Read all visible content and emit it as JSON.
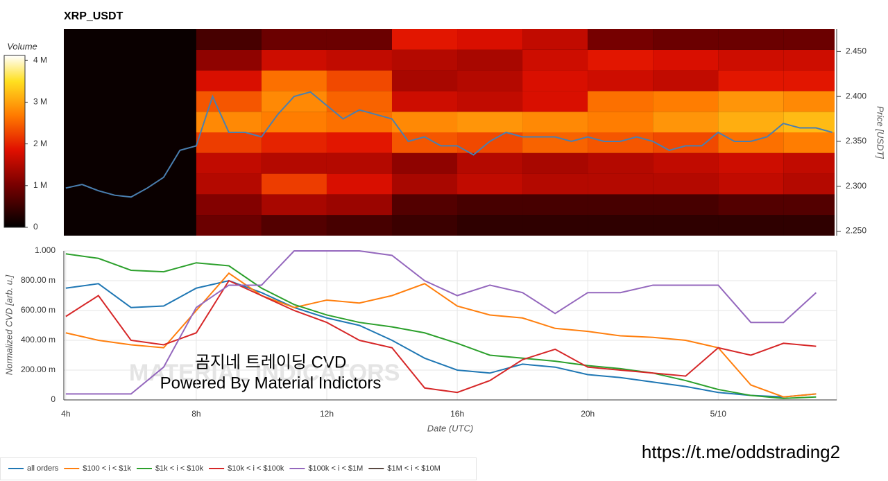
{
  "chart_data": [
    {
      "type": "heatmap",
      "title": "XRP_USDT",
      "ylabel": "Price [USDT]",
      "xlim": [
        3.94,
        27.57
      ],
      "ylim": [
        2.245,
        2.475
      ],
      "yticks": [
        {
          "value": 2.25,
          "label": "2.250"
        },
        {
          "value": 2.3,
          "label": "2.300"
        },
        {
          "value": 2.35,
          "label": "2.350"
        },
        {
          "value": 2.4,
          "label": "2.400"
        },
        {
          "value": 2.45,
          "label": "2.450"
        }
      ],
      "colorbar": {
        "label": "Volume",
        "zlim": [
          0,
          4120000
        ],
        "ticks": [
          0,
          {
            "value": 1000000,
            "label": "1 M"
          },
          {
            "value": 2000000,
            "label": "2 M"
          },
          {
            "value": 3000000,
            "label": "3 M"
          },
          {
            "value": 4000000,
            "label": "4 M"
          }
        ]
      },
      "heatmap": {
        "x_edges": [
          8,
          10,
          12,
          14,
          16,
          18,
          20,
          22,
          24,
          26,
          27.57
        ],
        "y_edges": [
          2.245,
          2.268,
          2.291,
          2.314,
          2.337,
          2.36,
          2.383,
          2.406,
          2.429,
          2.452,
          2.475
        ],
        "z": [
          [
            900000,
            700000,
            600000,
            500000,
            400000,
            400000,
            400000,
            400000,
            400000,
            400000
          ],
          [
            1100000,
            1400000,
            1300000,
            700000,
            600000,
            600000,
            600000,
            600000,
            700000,
            700000
          ],
          [
            1500000,
            2200000,
            1800000,
            1400000,
            1600000,
            1500000,
            1500000,
            1500000,
            1600000,
            1500000
          ],
          [
            1600000,
            1500000,
            1500000,
            1200000,
            1500000,
            1400000,
            1500000,
            1600000,
            1700000,
            1600000
          ],
          [
            2200000,
            2000000,
            1900000,
            2400000,
            2300000,
            2500000,
            2400000,
            2300000,
            2600000,
            2700000
          ],
          [
            2800000,
            2700000,
            2600000,
            2800000,
            2900000,
            2800000,
            2700000,
            2900000,
            3100000,
            3200000
          ],
          [
            2400000,
            2800000,
            2500000,
            1700000,
            1600000,
            1800000,
            2600000,
            2700000,
            2900000,
            2800000
          ],
          [
            1800000,
            2600000,
            2300000,
            1400000,
            1500000,
            1800000,
            1700000,
            1600000,
            1900000,
            1900000
          ],
          [
            1200000,
            1700000,
            1600000,
            1500000,
            1400000,
            1700000,
            1900000,
            1800000,
            1700000,
            1700000
          ],
          [
            600000,
            900000,
            900000,
            1900000,
            1800000,
            1600000,
            1000000,
            900000,
            900000,
            900000
          ]
        ]
      },
      "series": [
        {
          "color": "#4a7fb0",
          "x": [
            4,
            4.5,
            5,
            5.5,
            6,
            6.5,
            7,
            7.5,
            8,
            8.5,
            9,
            9.5,
            10,
            10.5,
            11,
            11.5,
            12,
            12.5,
            13,
            13.5,
            14,
            14.5,
            15,
            15.5,
            16,
            16.5,
            17,
            17.5,
            18,
            18.5,
            19,
            19.5,
            20,
            20.5,
            21,
            21.5,
            22,
            22.5,
            23,
            23.5,
            24,
            24.5,
            25,
            25.5,
            26,
            26.5,
            27,
            27.5
          ],
          "values": [
            2.298,
            2.302,
            2.295,
            2.29,
            2.288,
            2.298,
            2.31,
            2.34,
            2.345,
            2.4,
            2.36,
            2.36,
            2.355,
            2.38,
            2.4,
            2.405,
            2.39,
            2.375,
            2.385,
            2.38,
            2.375,
            2.35,
            2.355,
            2.345,
            2.345,
            2.335,
            2.35,
            2.36,
            2.355,
            2.355,
            2.355,
            2.35,
            2.355,
            2.35,
            2.35,
            2.355,
            2.35,
            2.34,
            2.345,
            2.345,
            2.36,
            2.35,
            2.35,
            2.355,
            2.37,
            2.365,
            2.365,
            2.36
          ]
        }
      ]
    },
    {
      "type": "line",
      "xlabel": "Date (UTC)",
      "ylabel": "Normalized CVD [arb. u.]",
      "xlim": [
        3.94,
        27.63
      ],
      "ylim": [
        0,
        1
      ],
      "grid": true,
      "legend": "bottom-left",
      "xticks": [
        {
          "value": 4,
          "label": "4h"
        },
        {
          "value": 8,
          "label": "8h"
        },
        {
          "value": 12,
          "label": "12h"
        },
        {
          "value": 16,
          "label": "16h"
        },
        {
          "value": 20,
          "label": "20h"
        },
        {
          "value": 24,
          "label": "5/10"
        }
      ],
      "yticks": [
        0,
        {
          "value": 0.2,
          "label": "200.00 m"
        },
        {
          "value": 0.4,
          "label": "400.00 m"
        },
        {
          "value": 0.6,
          "label": "600.00 m"
        },
        {
          "value": 0.8,
          "label": "800.00 m"
        },
        {
          "value": 1,
          "label": "1.000"
        }
      ],
      "x": [
        4,
        5,
        6,
        7,
        8,
        9,
        10,
        11,
        12,
        13,
        14,
        15,
        16,
        17,
        18,
        19,
        20,
        21,
        22,
        23,
        24,
        25,
        26,
        27
      ],
      "series": [
        {
          "name": "all orders",
          "color": "#1f77b4",
          "values": [
            0.75,
            0.78,
            0.62,
            0.63,
            0.75,
            0.8,
            0.72,
            0.62,
            0.55,
            0.5,
            0.4,
            0.28,
            0.2,
            0.18,
            0.24,
            0.22,
            0.17,
            0.15,
            0.12,
            0.09,
            0.05,
            0.03,
            0.02,
            0.04
          ]
        },
        {
          "name": "$100 < i < $1k",
          "color": "#ff7f0e",
          "values": [
            0.45,
            0.4,
            0.37,
            0.35,
            0.6,
            0.85,
            0.7,
            0.62,
            0.67,
            0.65,
            0.7,
            0.78,
            0.63,
            0.57,
            0.55,
            0.48,
            0.46,
            0.43,
            0.42,
            0.4,
            0.35,
            0.1,
            0.02,
            0.04
          ]
        },
        {
          "name": "$1k < i < $10k",
          "color": "#2ca02c",
          "values": [
            0.98,
            0.95,
            0.87,
            0.86,
            0.92,
            0.9,
            0.75,
            0.64,
            0.57,
            0.52,
            0.49,
            0.45,
            0.38,
            0.3,
            0.28,
            0.26,
            0.23,
            0.21,
            0.18,
            0.13,
            0.07,
            0.03,
            0.01,
            0.02
          ]
        },
        {
          "name": "$10k < i < $100k",
          "color": "#d62728",
          "values": [
            0.56,
            0.7,
            0.4,
            0.37,
            0.45,
            0.8,
            0.7,
            0.6,
            0.52,
            0.4,
            0.35,
            0.08,
            0.05,
            0.13,
            0.27,
            0.34,
            0.22,
            0.2,
            0.18,
            0.16,
            0.35,
            0.3,
            0.38,
            0.36
          ]
        },
        {
          "name": "$100k < i < $1M",
          "color": "#9467bd",
          "values": [
            0.04,
            0.04,
            0.04,
            0.22,
            0.62,
            0.77,
            0.77,
            1,
            1,
            1,
            0.97,
            0.8,
            0.7,
            0.77,
            0.72,
            0.58,
            0.72,
            0.72,
            0.77,
            0.77,
            0.77,
            0.52,
            0.52,
            0.72
          ]
        },
        {
          "name": "$1M < i < $10M",
          "color": "#5a4a42",
          "values": [
            null,
            null,
            null,
            null,
            null,
            null,
            null,
            null,
            null,
            null,
            null,
            null,
            null,
            null,
            null,
            null,
            null,
            null,
            null,
            null,
            null,
            null,
            null,
            null
          ]
        }
      ]
    }
  ],
  "watermark": {
    "brand": "MATERIAL INDICATORS",
    "lines": [
      "곰지네 트레이딩 CVD",
      "Powered By Material Indictors"
    ]
  },
  "link": "https://t.me/oddstrading2"
}
